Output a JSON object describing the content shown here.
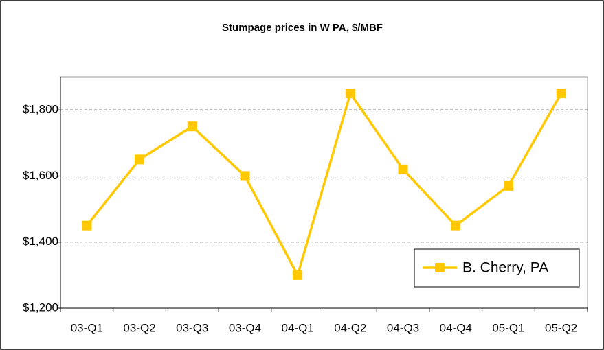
{
  "chart_data": {
    "type": "line",
    "title": "Stumpage prices in W PA, $/MBF",
    "categories": [
      "03-Q1",
      "03-Q2",
      "03-Q3",
      "03-Q4",
      "04-Q1",
      "04-Q2",
      "04-Q3",
      "04-Q4",
      "05-Q1",
      "05-Q2"
    ],
    "series": [
      {
        "name": "B. Cherry, PA",
        "color": "#ffc800",
        "values": [
          1450,
          1650,
          1750,
          1600,
          1300,
          1850,
          1620,
          1450,
          1570,
          1850
        ]
      }
    ],
    "ylim": [
      1200,
      1900
    ],
    "yticks": [
      {
        "value": 1200,
        "label": "$1,200"
      },
      {
        "value": 1400,
        "label": "$1,400"
      },
      {
        "value": 1600,
        "label": "$1,600"
      },
      {
        "value": 1800,
        "label": "$1,800"
      }
    ],
    "grid": true,
    "legend": "lower right"
  }
}
